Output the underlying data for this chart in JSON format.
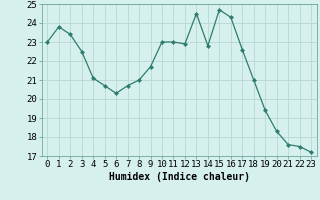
{
  "x": [
    0,
    1,
    2,
    3,
    4,
    5,
    6,
    7,
    8,
    9,
    10,
    11,
    12,
    13,
    14,
    15,
    16,
    17,
    18,
    19,
    20,
    21,
    22,
    23
  ],
  "y": [
    23.0,
    23.8,
    23.4,
    22.5,
    21.1,
    20.7,
    20.3,
    20.7,
    21.0,
    21.7,
    23.0,
    23.0,
    22.9,
    24.5,
    22.8,
    24.7,
    24.3,
    22.6,
    21.0,
    19.4,
    18.3,
    17.6,
    17.5,
    17.2
  ],
  "line_color": "#2e7d6e",
  "marker_color": "#2e7d6e",
  "bg_color": "#d6f0ee",
  "grid_color": "#b8d8d4",
  "xlabel": "Humidex (Indice chaleur)",
  "ylim": [
    17,
    25
  ],
  "xlim_min": -0.5,
  "xlim_max": 23.5,
  "yticks": [
    17,
    18,
    19,
    20,
    21,
    22,
    23,
    24,
    25
  ],
  "xticks": [
    0,
    1,
    2,
    3,
    4,
    5,
    6,
    7,
    8,
    9,
    10,
    11,
    12,
    13,
    14,
    15,
    16,
    17,
    18,
    19,
    20,
    21,
    22,
    23
  ],
  "xlabel_fontsize": 7,
  "tick_fontsize": 6.5
}
